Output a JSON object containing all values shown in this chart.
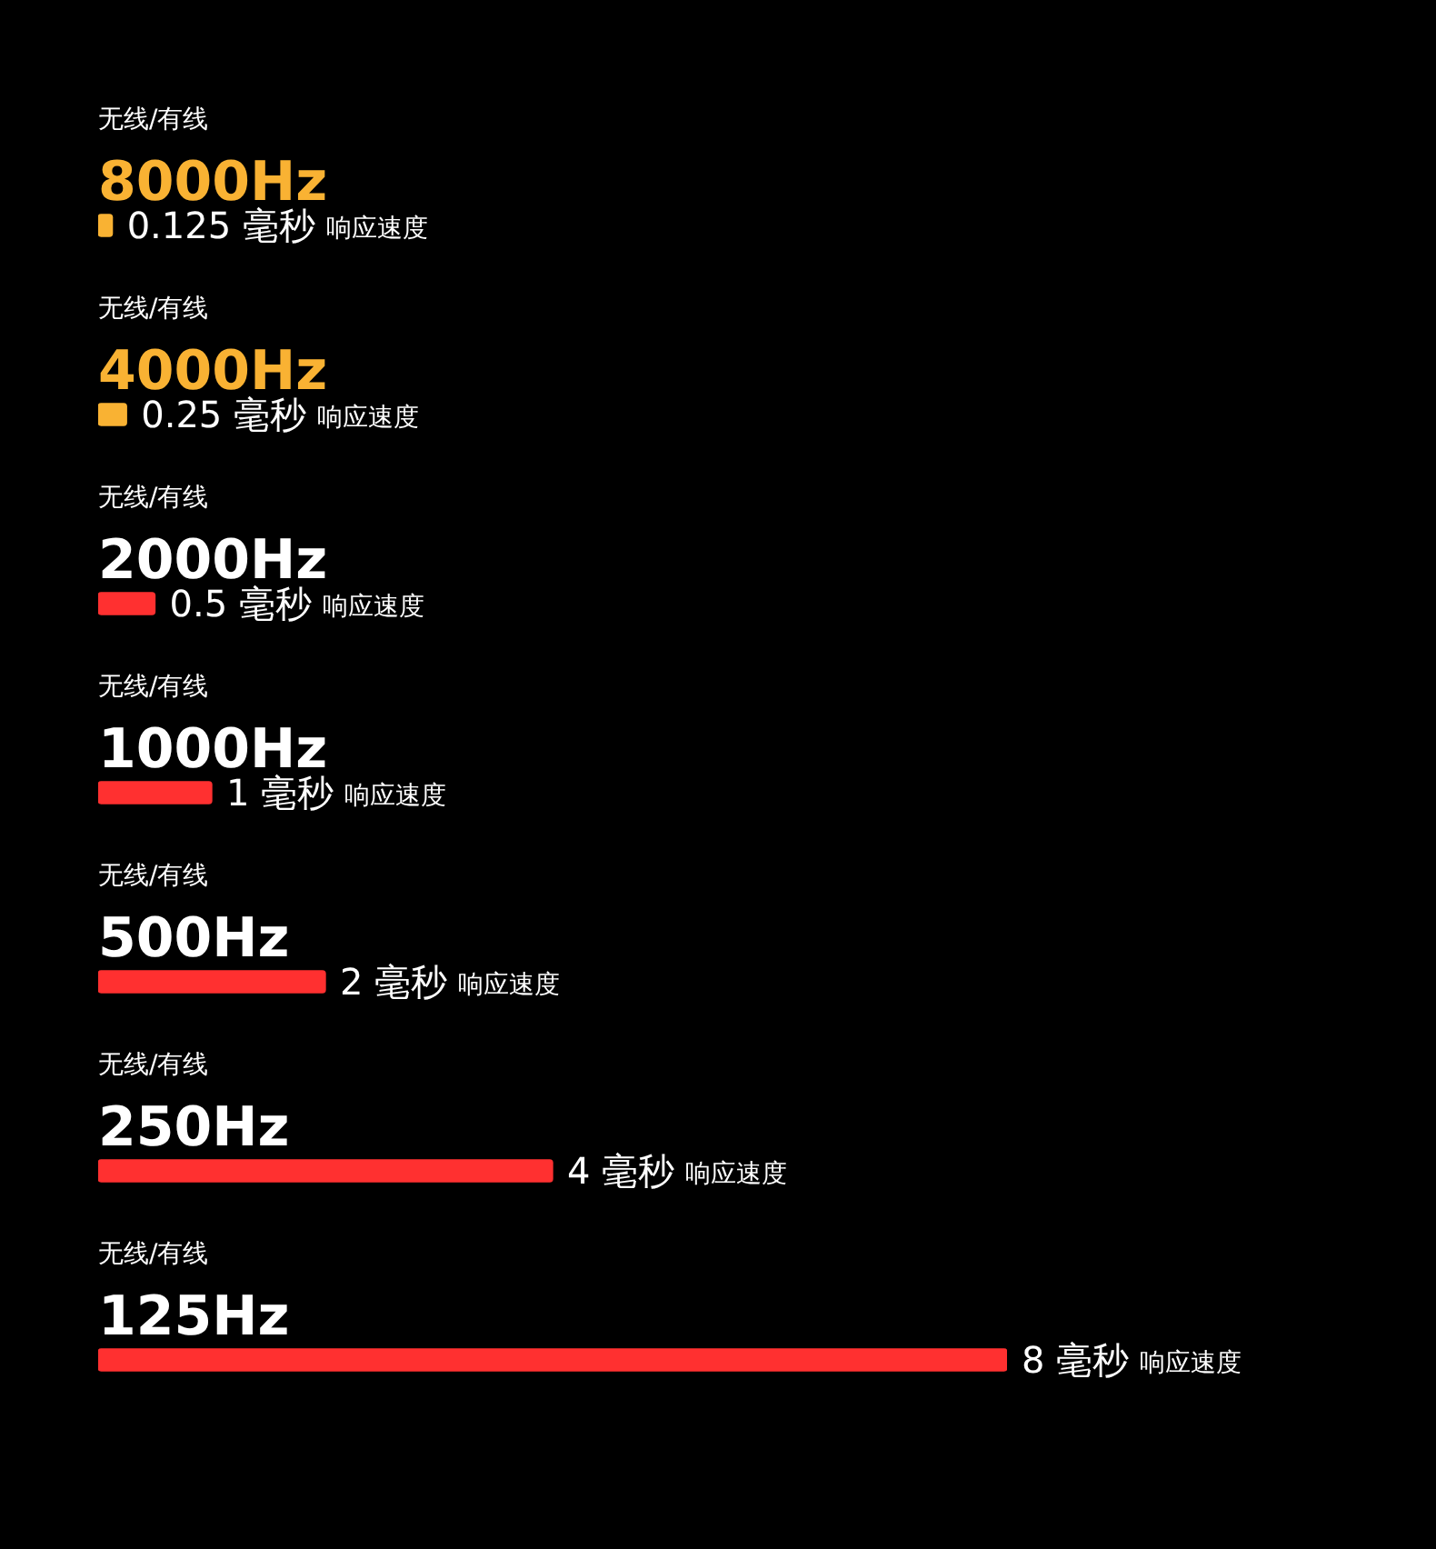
{
  "chart_data": {
    "type": "bar",
    "orientation": "horizontal",
    "tick_labels": false,
    "categories": [
      "无线/有线\n8000Hz",
      "无线/有线\n4000Hz",
      "无线/有线\n2000Hz",
      "无线/有线\n1000Hz",
      "无线/有线\n500Hz",
      "无线/有线\n250Hz",
      "无线/有线\n125Hz"
    ],
    "values": [
      0.125,
      0.25,
      0.5,
      1,
      2,
      4,
      8
    ],
    "colors": [
      "#f9b233",
      "#f9b233",
      "#ff3030",
      "#ff3030",
      "#ff3030",
      "#ff3030",
      "#ff3030"
    ],
    "value_labels": [
      "0.125 毫秒响应速度",
      "0.25 毫秒响应速度",
      "0.5 毫秒响应速度",
      "1 毫秒响应速度",
      "2 毫秒响应速度",
      "4 毫秒响应速度",
      "8 毫秒响应速度"
    ]
  }
}
